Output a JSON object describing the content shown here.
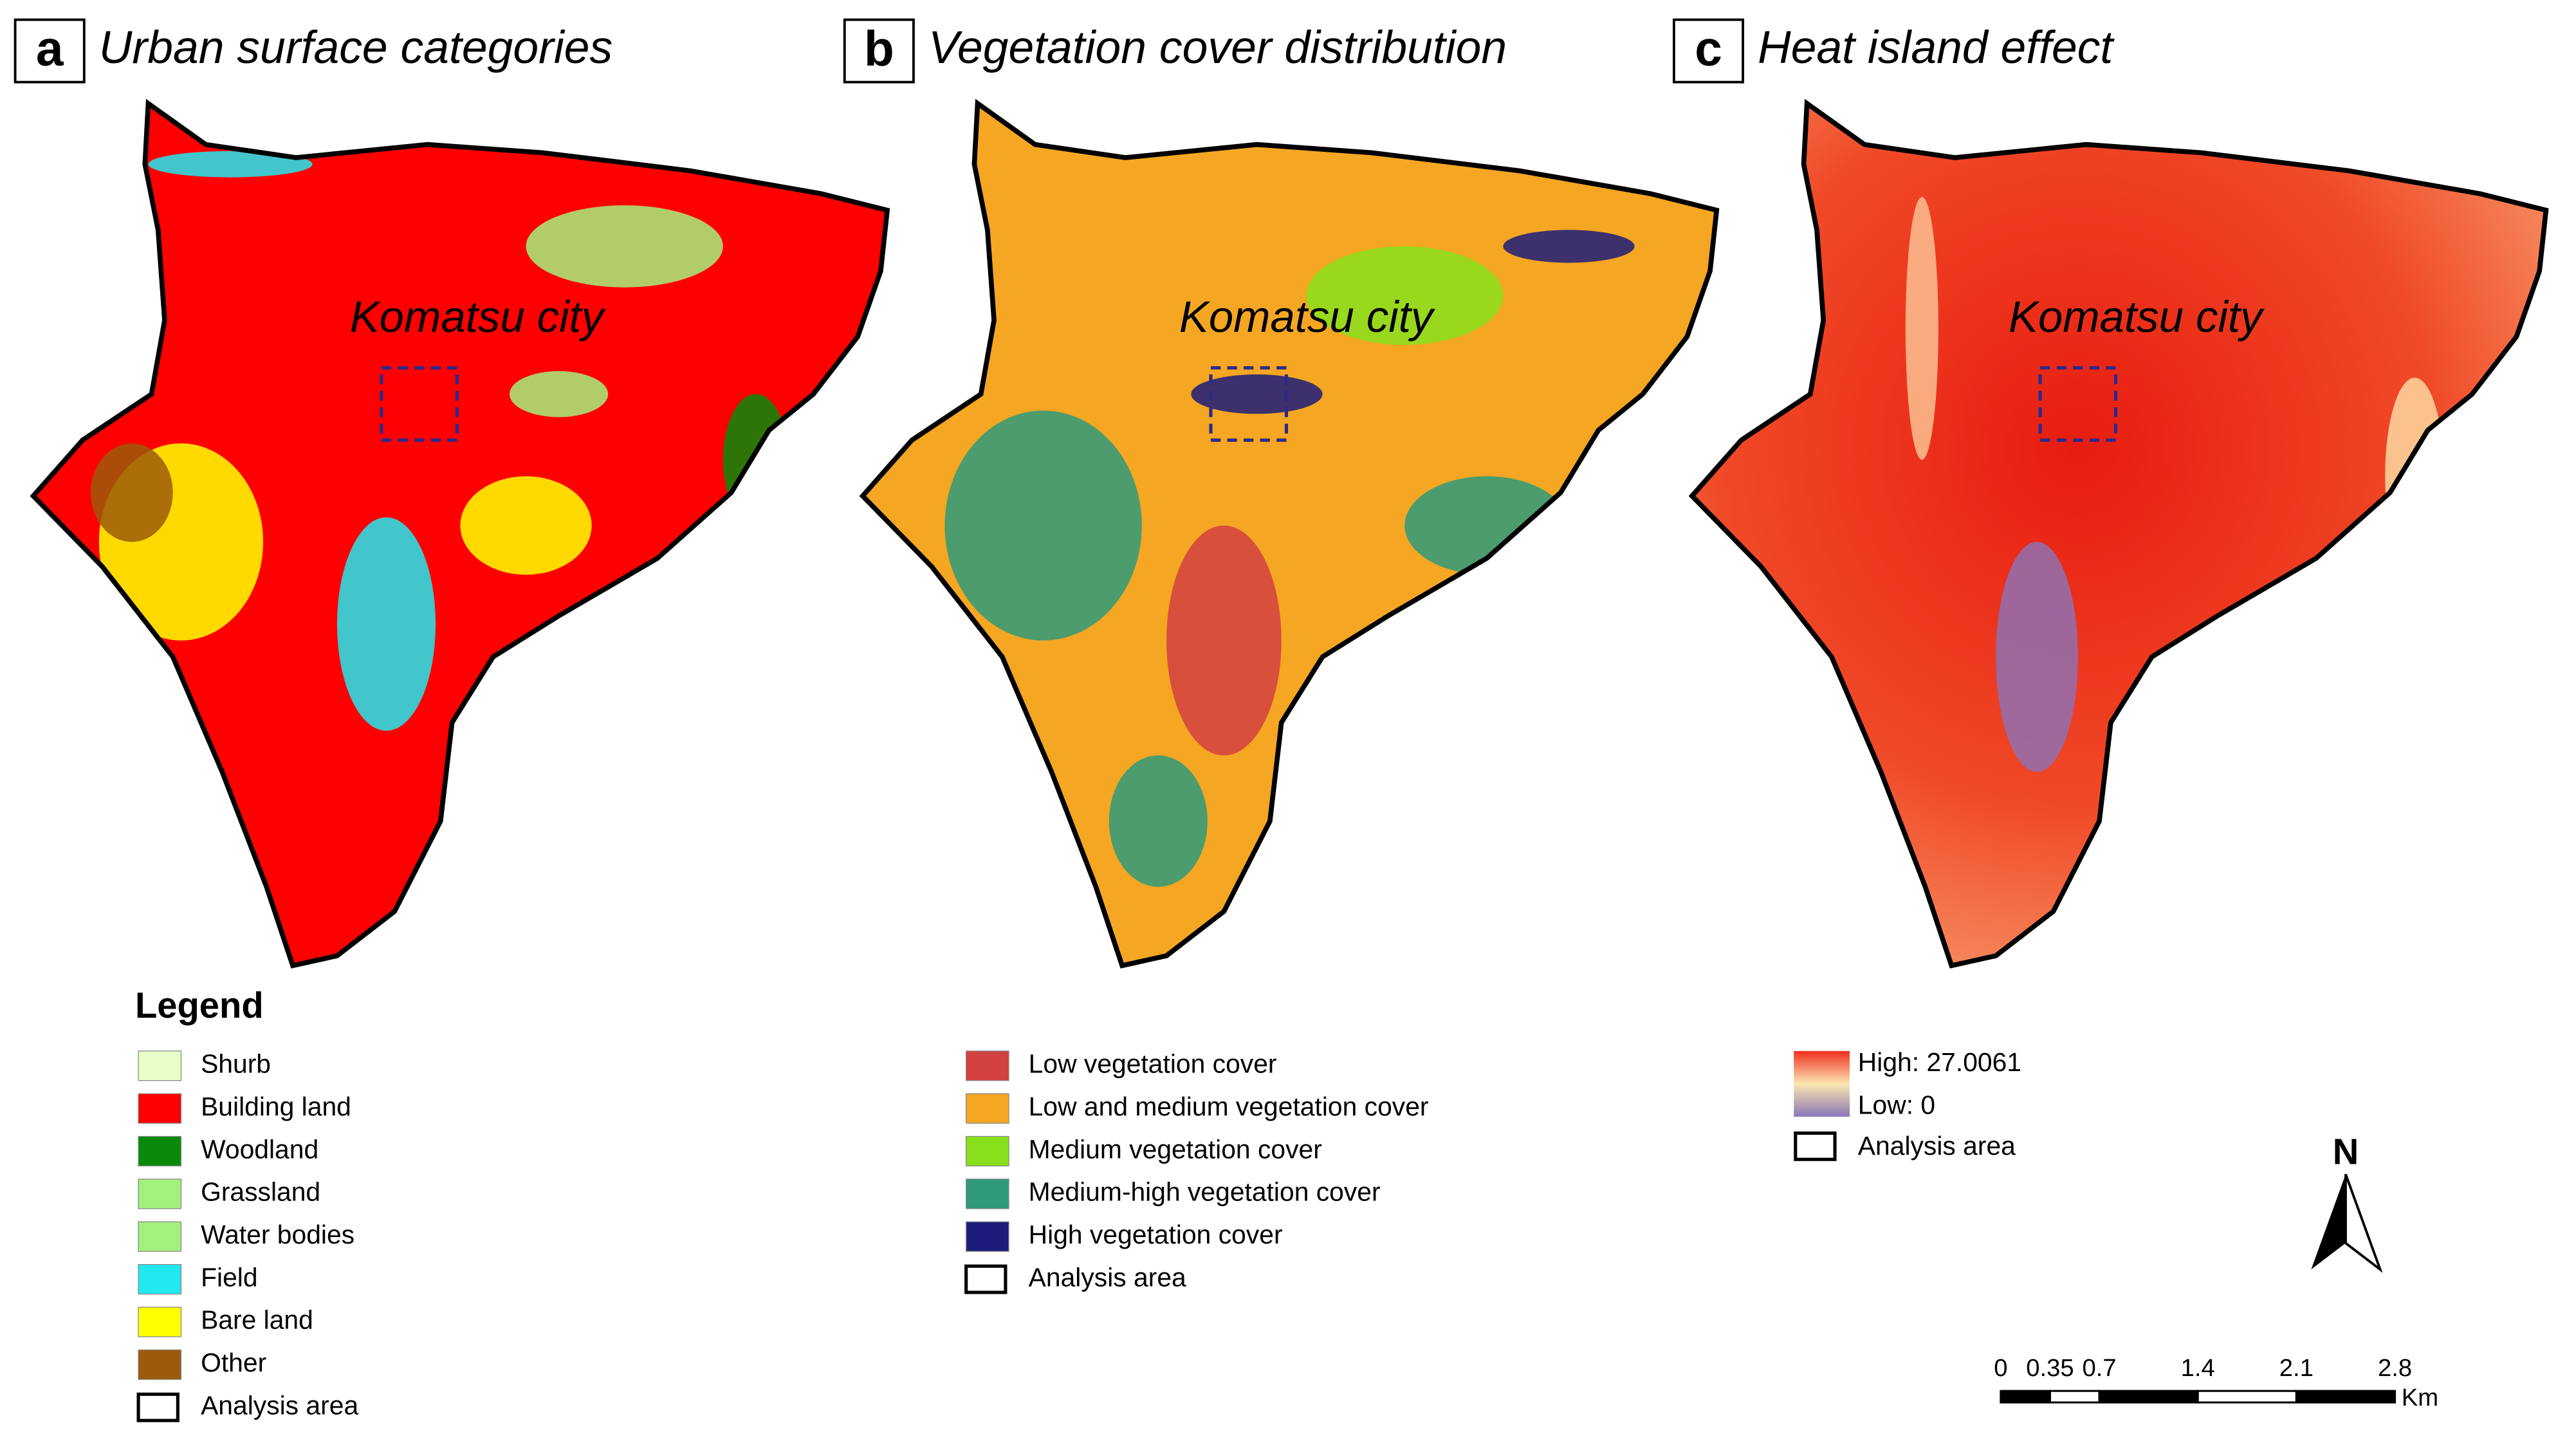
{
  "panels": [
    {
      "letter": "a",
      "title": "Urban surface categories",
      "city_label": "Komatsu city"
    },
    {
      "letter": "b",
      "title": "Vegetation cover distribution",
      "city_label": "Komatsu city"
    },
    {
      "letter": "c",
      "title": "Heat island effect",
      "city_label": "Komatsu city"
    }
  ],
  "legend_title": "Legend",
  "legends": [
    {
      "items": [
        {
          "label": "Shurb",
          "color": "#eaffc8"
        },
        {
          "label": "Building land",
          "color": "#ff0000"
        },
        {
          "label": "Woodland",
          "color": "#088a08"
        },
        {
          "label": "Grassland",
          "color": "#a4f07c"
        },
        {
          "label": "Water bodies",
          "color": "#a4f07c"
        },
        {
          "label": "Field",
          "color": "#22e8f0"
        },
        {
          "label": "Bare land",
          "color": "#ffff00"
        },
        {
          "label": "Other",
          "color": "#9c5a0a"
        },
        {
          "label": "Analysis area"
        }
      ]
    },
    {
      "items": [
        {
          "label": "Low vegetation cover",
          "color": "#d2403f"
        },
        {
          "label": "Low and medium vegetation cover",
          "color": "#f5a623"
        },
        {
          "label": "Medium vegetation cover",
          "color": "#88e01c"
        },
        {
          "label": "Medium-high vegetation cover",
          "color": "#2e9a7a"
        },
        {
          "label": "High vegetation cover",
          "color": "#1b1b7a"
        },
        {
          "label": "Analysis area"
        }
      ]
    }
  ],
  "heat_legend": {
    "high": "High: 27.0061",
    "low": "Low: 0",
    "area": "Analysis area"
  },
  "scale_bar": {
    "ticks": [
      0,
      0.35,
      0.7,
      1.4,
      2.1,
      2.8
    ],
    "unit": "Km"
  },
  "north": "N"
}
